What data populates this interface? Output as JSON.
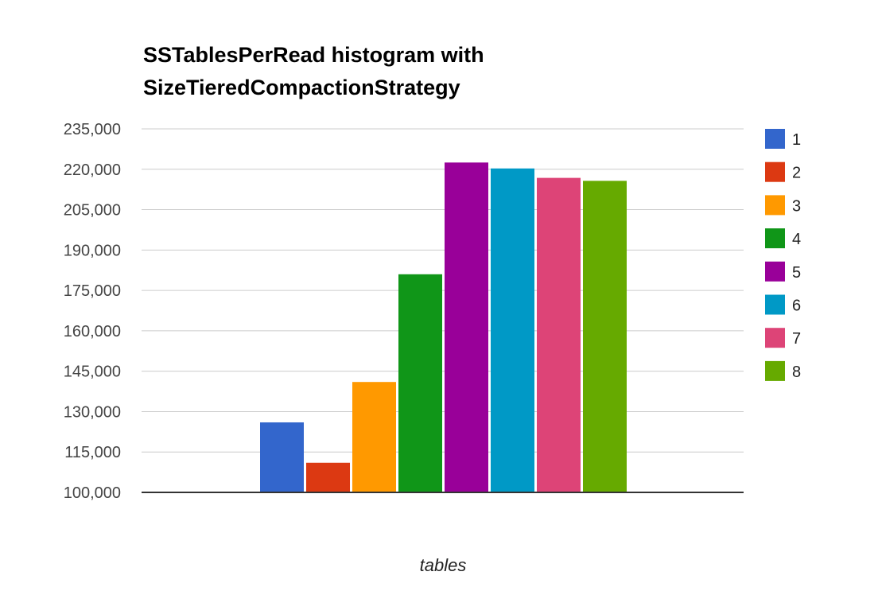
{
  "chart_data": {
    "type": "bar",
    "title": [
      "SSTablesPerRead histogram with",
      "SizeTieredCompactionStrategy"
    ],
    "xlabel": "tables",
    "ylabel": "",
    "ylim": [
      100000,
      235000
    ],
    "yticks": [
      "100,000",
      "115,000",
      "130,000",
      "145,000",
      "160,000",
      "175,000",
      "190,000",
      "205,000",
      "220,000",
      "235,000"
    ],
    "grid": true,
    "legend_position": "right",
    "series": [
      {
        "name": "1",
        "value": 126000,
        "color": "#3366cc"
      },
      {
        "name": "2",
        "value": 111000,
        "color": "#dc3912"
      },
      {
        "name": "3",
        "value": 141000,
        "color": "#ff9900"
      },
      {
        "name": "4",
        "value": 181000,
        "color": "#109618"
      },
      {
        "name": "5",
        "value": 222500,
        "color": "#990099"
      },
      {
        "name": "6",
        "value": 220300,
        "color": "#0099c6"
      },
      {
        "name": "7",
        "value": 216800,
        "color": "#dd4477"
      },
      {
        "name": "8",
        "value": 215700,
        "color": "#66aa00"
      }
    ]
  }
}
